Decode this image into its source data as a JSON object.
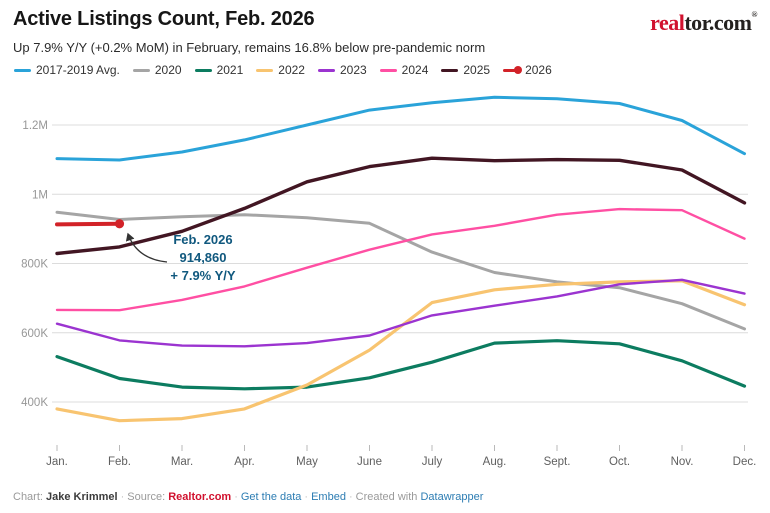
{
  "header": {
    "title": "Active Listings Count, Feb. 2026",
    "subtitle": "Up 7.9% Y/Y (+0.2% MoM) in February, remains 16.8% below pre-pandemic norm",
    "logo": {
      "part_red": "real",
      "part_dark": "tor.com",
      "mark": "®"
    }
  },
  "chart_data": {
    "type": "line",
    "title": "Active Listings Count, Feb. 2026",
    "xlabel": "",
    "ylabel": "Active listings count",
    "categories": [
      "Jan.",
      "Feb.",
      "Mar.",
      "Apr.",
      "May",
      "June",
      "July",
      "Aug.",
      "Sept.",
      "Oct.",
      "Nov.",
      "Dec."
    ],
    "y_ticks": [
      {
        "value": 400000,
        "label": "400K"
      },
      {
        "value": 600000,
        "label": "600K"
      },
      {
        "value": 800000,
        "label": "800K"
      },
      {
        "value": 1000000,
        "label": "1M"
      },
      {
        "value": 1200000,
        "label": "1.2M"
      }
    ],
    "ylim": [
      300000,
      1310000
    ],
    "grid": "horizontal",
    "legend_position": "top",
    "series": [
      {
        "name": "2017-2019 Avg.",
        "color": "#2aa3d9",
        "width": 3,
        "values": [
          1103000,
          1099000,
          1122000,
          1157000,
          1200000,
          1243000,
          1264000,
          1280000,
          1276000,
          1262000,
          1213000,
          1117000
        ]
      },
      {
        "name": "2020",
        "color": "#a5a5a5",
        "width": 3,
        "values": [
          948000,
          927000,
          935000,
          941000,
          932000,
          916000,
          833000,
          774000,
          747000,
          730000,
          684000,
          611000
        ]
      },
      {
        "name": "2021",
        "color": "#0c7c60",
        "width": 3.2,
        "values": [
          531000,
          468000,
          443000,
          438000,
          443000,
          470000,
          515000,
          570000,
          577000,
          568000,
          519000,
          446000
        ]
      },
      {
        "name": "2022",
        "color": "#f8c470",
        "width": 3.2,
        "values": [
          380000,
          346000,
          352000,
          380000,
          449000,
          550000,
          687000,
          724000,
          740000,
          747000,
          750000,
          681000
        ]
      },
      {
        "name": "2023",
        "color": "#9b34d0",
        "width": 2.4,
        "values": [
          626000,
          578000,
          563000,
          561000,
          570000,
          592000,
          650000,
          678000,
          705000,
          740000,
          753000,
          713000
        ]
      },
      {
        "name": "2024",
        "color": "#ff4fa3",
        "width": 2.4,
        "values": [
          666000,
          665000,
          695000,
          734000,
          788000,
          840000,
          884000,
          909000,
          941000,
          957000,
          954000,
          872000
        ]
      },
      {
        "name": "2025",
        "color": "#421623",
        "width": 3.4,
        "values": [
          829000,
          848000,
          893000,
          959000,
          1036000,
          1080000,
          1104000,
          1097000,
          1100000,
          1098000,
          1070000,
          975000
        ]
      },
      {
        "name": "2026",
        "color": "#d22228",
        "width": 4,
        "marker": "dot",
        "values": [
          913000,
          914860,
          null,
          null,
          null,
          null,
          null,
          null,
          null,
          null,
          null,
          null
        ]
      }
    ]
  },
  "annotation": {
    "line1": "Feb. 2026",
    "line2": "914,860",
    "line3": "+ 7.9% Y/Y",
    "color": "#10587e"
  },
  "footer": {
    "chart_label": "Chart:",
    "chart_author": "Jake Krimmel",
    "source_label": "Source:",
    "source_name": "Realtor.com",
    "get_data": "Get the data",
    "embed": "Embed",
    "created_with": "Created with",
    "tool": "Datawrapper",
    "separator": "·"
  }
}
